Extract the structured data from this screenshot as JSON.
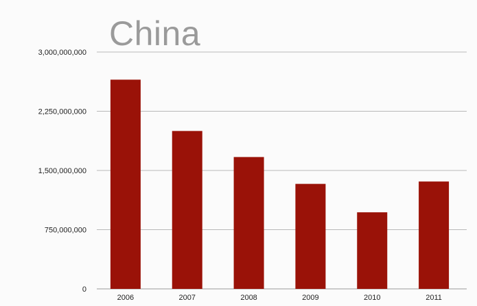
{
  "chart_data": {
    "type": "bar",
    "title": "China",
    "categories": [
      "2006",
      "2007",
      "2008",
      "2009",
      "2010",
      "2011"
    ],
    "values": [
      2650000000,
      2000000000,
      1670000000,
      1330000000,
      970000000,
      1360000000
    ],
    "ylim": [
      0,
      3000000000
    ],
    "yticks": [
      "0",
      "750,000,000",
      "1,500,000,000",
      "2,250,000,000",
      "3,000,000,000"
    ],
    "ytick_values": [
      0,
      750000000,
      1500000000,
      2250000000,
      3000000000
    ],
    "grid": true,
    "legend": "none",
    "bar_color": "#9a1208",
    "xlabel": "",
    "ylabel": ""
  }
}
